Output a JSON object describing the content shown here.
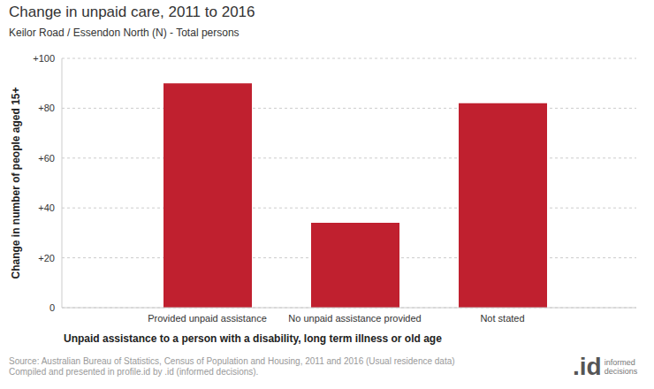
{
  "chart_data": {
    "type": "bar",
    "title": "Change in unpaid care, 2011 to 2016",
    "subtitle": "Keilor Road / Essendon North (N) - Total persons",
    "x_label": "Unpaid assistance to a person with a disability, long term illness or old age",
    "y_label": "Change in number of people aged 15+",
    "categories": [
      "Provided unpaid assistance",
      "No unpaid assistance provided",
      "Not stated"
    ],
    "values": [
      90,
      34,
      82
    ],
    "color": "#c0202f",
    "ylim": [
      0,
      100
    ],
    "yticks": [
      0,
      {
        "value": 20,
        "label": "+20"
      },
      {
        "value": 40,
        "label": "+40"
      },
      {
        "value": 60,
        "label": "+60"
      },
      {
        "value": 80,
        "label": "+80"
      },
      {
        "value": 100,
        "label": "+100"
      }
    ],
    "grid": true,
    "source": [
      "Source: Australian Bureau of Statistics, Census of Population and Housing, 2011 and 2016 (Usual residence data)",
      "Compiled and presented in profile.id by .id (informed decisions)."
    ],
    "logo": [
      ".id",
      "informed",
      "decisions"
    ]
  }
}
